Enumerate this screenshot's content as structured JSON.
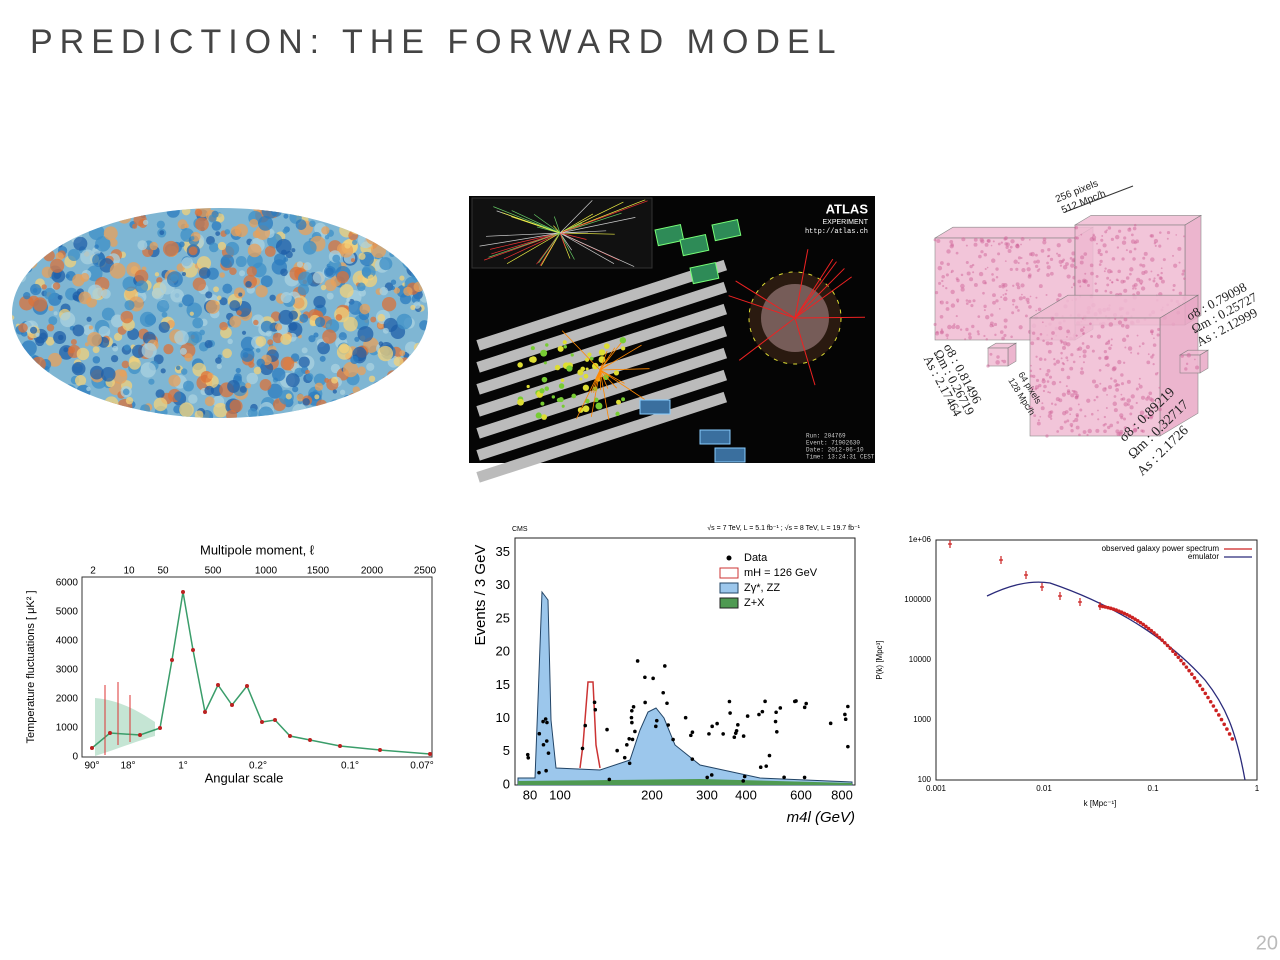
{
  "title": "PREDICTION: THE FORWARD MODEL",
  "page_number": "20",
  "atlas": {
    "logo": "ATLAS",
    "subtitle": "EXPERIMENT",
    "url": "http://atlas.ch",
    "info": [
      "Run: 204769",
      "Event: 71902630",
      "Date: 2012-06-10",
      "Time: 13:24:31 CEST"
    ]
  },
  "simulation": {
    "large_size": [
      "256 pixels",
      "512 Mpc/h"
    ],
    "small_size": [
      "64 pixels",
      "128 Mpc/h"
    ],
    "params_left": [
      "σ8 : 0.81496",
      "Ωm : 0.26719",
      "As : 2.17464"
    ],
    "params_right": [
      "σ8 : 0.79098",
      "Ωm : 0.25727",
      "As : 2.12999"
    ],
    "params_front": [
      "σ8 : 0.89219",
      "Ωm : 0.32717",
      "As : 2.1726"
    ]
  },
  "cmb_spectrum": {
    "top_axis_label": "Multipole moment, ℓ",
    "top_ticks": [
      "2",
      "10",
      "50",
      "500",
      "1000",
      "1500",
      "2000",
      "2500"
    ],
    "yticks": [
      "0",
      "1000",
      "2000",
      "3000",
      "4000",
      "5000",
      "6000"
    ],
    "y_label": "Temperature fluctuations [ μK² ]",
    "bottom_ticks": [
      "90°",
      "18°",
      "1°",
      "0.2°",
      "0.1°",
      "0.07°"
    ],
    "x_label": "Angular scale"
  },
  "higgs": {
    "experiment": "CMS",
    "energy_note": "√s = 7 TeV, L = 5.1 fb⁻¹ ; √s = 8 TeV, L = 19.7 fb⁻¹",
    "yticks": [
      "0",
      "5",
      "10",
      "15",
      "20",
      "25",
      "30",
      "35"
    ],
    "xticks": [
      "80",
      "100",
      "200",
      "300",
      "400",
      "600",
      "800"
    ],
    "y_label": "Events / 3 GeV",
    "x_label": "m4l (GeV)",
    "legend": [
      "Data",
      "mH = 126 GeV",
      "Zγ*, ZZ",
      "Z+X"
    ]
  },
  "galaxy_power": {
    "yticks": [
      "1e+06",
      "100000",
      "10000",
      "1000",
      "100"
    ],
    "xticks": [
      "0.001",
      "0.01",
      "0.1",
      "1"
    ],
    "y_label": "P(k) [Mpc³]",
    "x_label": "k [Mpc⁻¹]",
    "legend": [
      "observed galaxy power spectrum",
      "emulator"
    ]
  }
}
